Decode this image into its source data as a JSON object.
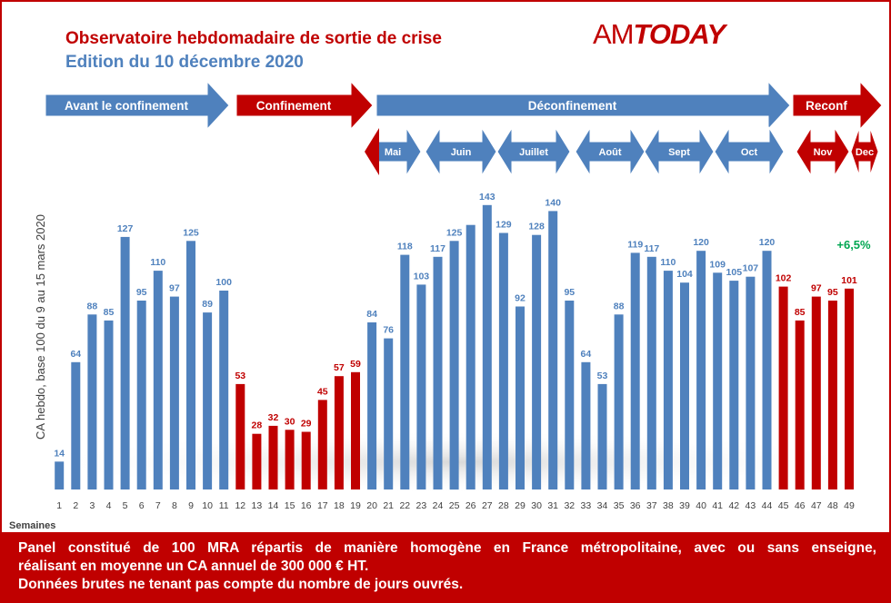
{
  "title": "Observatoire hebdomadaire de sortie de crise",
  "subtitle": "Edition du 10 décembre 2020",
  "logo": {
    "am": "AM",
    "today": "TODAY"
  },
  "colors": {
    "blue": "#4f81bd",
    "red": "#c00000",
    "green": "#00a651"
  },
  "phases": [
    {
      "label": "Avant le confinement",
      "color": "blue"
    },
    {
      "label": "Confinement",
      "color": "red"
    },
    {
      "label": "Déconfinement",
      "color": "blue"
    },
    {
      "label": "Reconf",
      "color": "red"
    }
  ],
  "months": [
    {
      "label": "Mai",
      "color": "blue"
    },
    {
      "label": "Juin",
      "color": "blue"
    },
    {
      "label": "Juillet",
      "color": "blue"
    },
    {
      "label": "Août",
      "color": "blue"
    },
    {
      "label": "Sept",
      "color": "blue"
    },
    {
      "label": "Oct",
      "color": "blue"
    },
    {
      "label": "Nov",
      "color": "red"
    },
    {
      "label": "Dec",
      "color": "red"
    }
  ],
  "chart_data": {
    "type": "bar",
    "ylabel": "CA hebdo, base 100 du 9 au 15 mars 2020",
    "xlabel": "Semaines",
    "ylim": [
      0,
      150
    ],
    "grid": false,
    "categories": [
      "1",
      "2",
      "3",
      "4",
      "5",
      "6",
      "7",
      "8",
      "9",
      "10",
      "11",
      "12",
      "13",
      "14",
      "15",
      "16",
      "17",
      "18",
      "19",
      "20",
      "21",
      "22",
      "23",
      "24",
      "25",
      "26",
      "27",
      "28",
      "29",
      "30",
      "31",
      "32",
      "33",
      "34",
      "35",
      "36",
      "37",
      "38",
      "39",
      "40",
      "41",
      "42",
      "43",
      "44",
      "45",
      "46",
      "47",
      "48",
      "49"
    ],
    "values": [
      14,
      64,
      88,
      85,
      127,
      95,
      110,
      97,
      125,
      89,
      100,
      53,
      28,
      32,
      30,
      29,
      45,
      57,
      59,
      84,
      76,
      118,
      103,
      117,
      125,
      133,
      143,
      129,
      92,
      128,
      140,
      95,
      64,
      53,
      88,
      119,
      117,
      110,
      104,
      120,
      109,
      105,
      107,
      120,
      102,
      85,
      97,
      95,
      101
    ],
    "bar_colors": [
      "blue",
      "blue",
      "blue",
      "blue",
      "blue",
      "blue",
      "blue",
      "blue",
      "blue",
      "blue",
      "blue",
      "red",
      "red",
      "red",
      "red",
      "red",
      "red",
      "red",
      "red",
      "blue",
      "blue",
      "blue",
      "blue",
      "blue",
      "blue",
      "blue",
      "blue",
      "blue",
      "blue",
      "blue",
      "blue",
      "blue",
      "blue",
      "blue",
      "blue",
      "blue",
      "blue",
      "blue",
      "blue",
      "blue",
      "blue",
      "blue",
      "blue",
      "blue",
      "red",
      "red",
      "red",
      "red",
      "red"
    ],
    "value_labels": [
      "14",
      "64",
      "88",
      "85",
      "127",
      "95",
      "110",
      "97",
      "125",
      "89",
      "100",
      "53",
      "28",
      "32",
      "30",
      "29",
      "45",
      "57",
      "59",
      "84",
      "76",
      "118",
      "103",
      "117",
      "125",
      "",
      "143",
      "129",
      "92",
      "128",
      "140",
      "95",
      "64",
      "53",
      "88",
      "119",
      "117",
      "110",
      "104",
      "120",
      "109",
      "105",
      "107",
      "120",
      "102",
      "85",
      "97",
      "95",
      "101"
    ],
    "annotation": "+6,5%"
  },
  "footer": {
    "line1": "Panel constitué de 100 MRA répartis de manière homogène en France métropolitaine, avec ou sans enseigne,",
    "line2": "réalisant en moyenne un CA annuel de 300 000 € HT.",
    "line3": "Données brutes ne tenant pas compte du nombre de jours ouvrés."
  }
}
